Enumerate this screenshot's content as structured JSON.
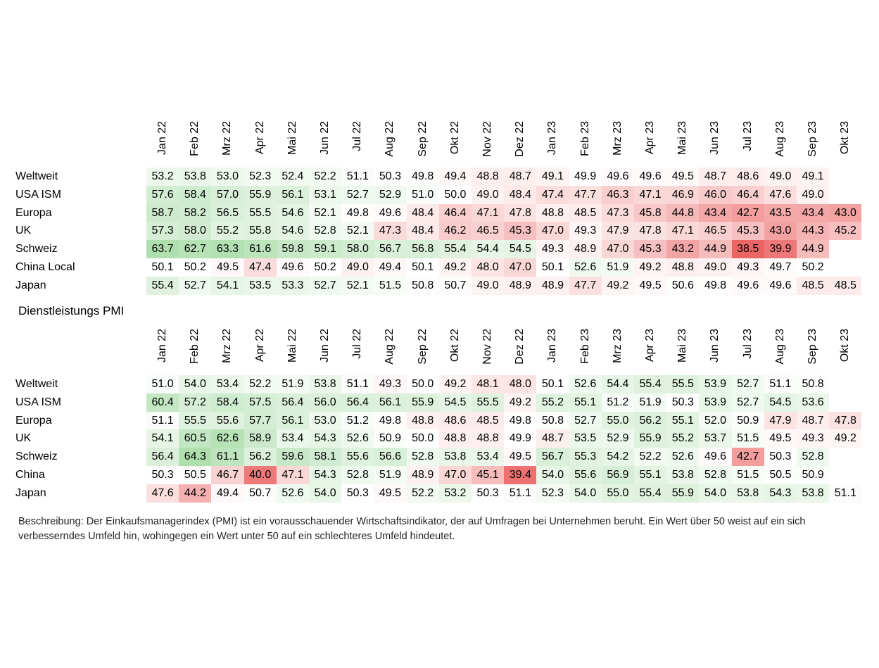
{
  "section_title": "Dienstleistungs PMI",
  "description": "Beschreibung: Der Einkaufsmanagerindex (PMI) ist ein vorausschauender Wirtschaftsindikator, der auf Umfragen bei Unternehmen beruht. Ein Wert über 50 weist auf ein sich verbesserndes Umfeld hin, wohingegen ein Wert unter 50 auf ein schlechteres Umfeld hindeutet.",
  "colors": {
    "positive": "#6cc46a",
    "negative": "#e84a4a",
    "neutral": "#ffffff"
  },
  "chart_data": [
    {
      "type": "heatmap",
      "title": "",
      "columns": [
        "Jan 22",
        "Feb 22",
        "Mrz 22",
        "Apr 22",
        "Mai 22",
        "Jun 22",
        "Jul 22",
        "Aug 22",
        "Sep 22",
        "Okt 22",
        "Nov 22",
        "Dez 22",
        "Jan 23",
        "Feb 23",
        "Mrz 23",
        "Apr 23",
        "Mai 23",
        "Jun 23",
        "Jul 23",
        "Aug 23",
        "Sep 23",
        "Okt 23"
      ],
      "rows": [
        {
          "name": "Weltweit",
          "values": [
            53.2,
            53.8,
            53.0,
            52.3,
            52.4,
            52.2,
            51.1,
            50.3,
            49.8,
            49.4,
            48.8,
            48.7,
            49.1,
            49.9,
            49.6,
            49.6,
            49.5,
            48.7,
            48.6,
            49.0,
            49.1,
            null
          ]
        },
        {
          "name": "USA ISM",
          "values": [
            57.6,
            58.4,
            57.0,
            55.9,
            56.1,
            53.1,
            52.7,
            52.9,
            51.0,
            50.0,
            49.0,
            48.4,
            47.4,
            47.7,
            46.3,
            47.1,
            46.9,
            46.0,
            46.4,
            47.6,
            49.0,
            null
          ]
        },
        {
          "name": "Europa",
          "values": [
            58.7,
            58.2,
            56.5,
            55.5,
            54.6,
            52.1,
            49.8,
            49.6,
            48.4,
            46.4,
            47.1,
            47.8,
            48.8,
            48.5,
            47.3,
            45.8,
            44.8,
            43.4,
            42.7,
            43.5,
            43.4,
            43.0
          ]
        },
        {
          "name": "UK",
          "values": [
            57.3,
            58.0,
            55.2,
            55.8,
            54.6,
            52.8,
            52.1,
            47.3,
            48.4,
            46.2,
            46.5,
            45.3,
            47.0,
            49.3,
            47.9,
            47.8,
            47.1,
            46.5,
            45.3,
            43.0,
            44.3,
            45.2
          ]
        },
        {
          "name": "Schweiz",
          "values": [
            63.7,
            62.7,
            63.3,
            61.6,
            59.8,
            59.1,
            58.0,
            56.7,
            56.8,
            55.4,
            54.4,
            54.5,
            49.3,
            48.9,
            47.0,
            45.3,
            43.2,
            44.9,
            38.5,
            39.9,
            44.9,
            null
          ]
        },
        {
          "name": "China Local",
          "values": [
            50.1,
            50.2,
            49.5,
            47.4,
            49.6,
            50.2,
            49.0,
            49.4,
            50.1,
            49.2,
            48.0,
            47.0,
            50.1,
            52.6,
            51.9,
            49.2,
            48.8,
            49.0,
            49.3,
            49.7,
            50.2,
            null
          ]
        },
        {
          "name": "Japan",
          "values": [
            55.4,
            52.7,
            54.1,
            53.5,
            53.3,
            52.7,
            52.1,
            51.5,
            50.8,
            50.7,
            49.0,
            48.9,
            48.9,
            47.7,
            49.2,
            49.5,
            50.6,
            49.8,
            49.6,
            49.6,
            48.5,
            48.5
          ]
        }
      ]
    },
    {
      "type": "heatmap",
      "title": "Dienstleistungs PMI",
      "columns": [
        "Jan 22",
        "Feb 22",
        "Mrz 22",
        "Apr 22",
        "Mai 22",
        "Jun 22",
        "Jul 22",
        "Aug 22",
        "Sep 22",
        "Okt 22",
        "Nov 22",
        "Dez 22",
        "Jan 23",
        "Feb 23",
        "Mrz 23",
        "Apr 23",
        "Mai 23",
        "Jun 23",
        "Jul 23",
        "Aug 23",
        "Sep 23",
        "Okt 23"
      ],
      "rows": [
        {
          "name": "Weltweit",
          "values": [
            51.0,
            54.0,
            53.4,
            52.2,
            51.9,
            53.8,
            51.1,
            49.3,
            50.0,
            49.2,
            48.1,
            48.0,
            50.1,
            52.6,
            54.4,
            55.4,
            55.5,
            53.9,
            52.7,
            51.1,
            50.8,
            null
          ]
        },
        {
          "name": "USA ISM",
          "values": [
            60.4,
            57.2,
            58.4,
            57.5,
            56.4,
            56.0,
            56.4,
            56.1,
            55.9,
            54.5,
            55.5,
            49.2,
            55.2,
            55.1,
            51.2,
            51.9,
            50.3,
            53.9,
            52.7,
            54.5,
            53.6,
            null
          ]
        },
        {
          "name": "Europa",
          "values": [
            51.1,
            55.5,
            55.6,
            57.7,
            56.1,
            53.0,
            51.2,
            49.8,
            48.8,
            48.6,
            48.5,
            49.8,
            50.8,
            52.7,
            55.0,
            56.2,
            55.1,
            52.0,
            50.9,
            47.9,
            48.7,
            47.8
          ]
        },
        {
          "name": "UK",
          "values": [
            54.1,
            60.5,
            62.6,
            58.9,
            53.4,
            54.3,
            52.6,
            50.9,
            50.0,
            48.8,
            48.8,
            49.9,
            48.7,
            53.5,
            52.9,
            55.9,
            55.2,
            53.7,
            51.5,
            49.5,
            49.3,
            49.2
          ]
        },
        {
          "name": "Schweiz",
          "values": [
            56.4,
            64.3,
            61.1,
            56.2,
            59.6,
            58.1,
            55.6,
            56.6,
            52.8,
            53.8,
            53.4,
            49.5,
            56.7,
            55.3,
            54.2,
            52.2,
            52.6,
            49.6,
            42.7,
            50.3,
            52.8,
            null
          ]
        },
        {
          "name": "China",
          "values": [
            50.3,
            50.5,
            46.7,
            40.0,
            47.1,
            54.3,
            52.8,
            51.9,
            48.9,
            47.0,
            45.1,
            39.4,
            54.0,
            55.6,
            56.9,
            55.1,
            53.8,
            52.8,
            51.5,
            50.5,
            50.9,
            null
          ]
        },
        {
          "name": "Japan",
          "values": [
            47.6,
            44.2,
            49.4,
            50.7,
            52.6,
            54.0,
            50.3,
            49.5,
            52.2,
            53.2,
            50.3,
            51.1,
            52.3,
            54.0,
            55.0,
            55.4,
            55.9,
            54.0,
            53.8,
            54.3,
            53.8,
            51.1
          ]
        }
      ]
    }
  ]
}
